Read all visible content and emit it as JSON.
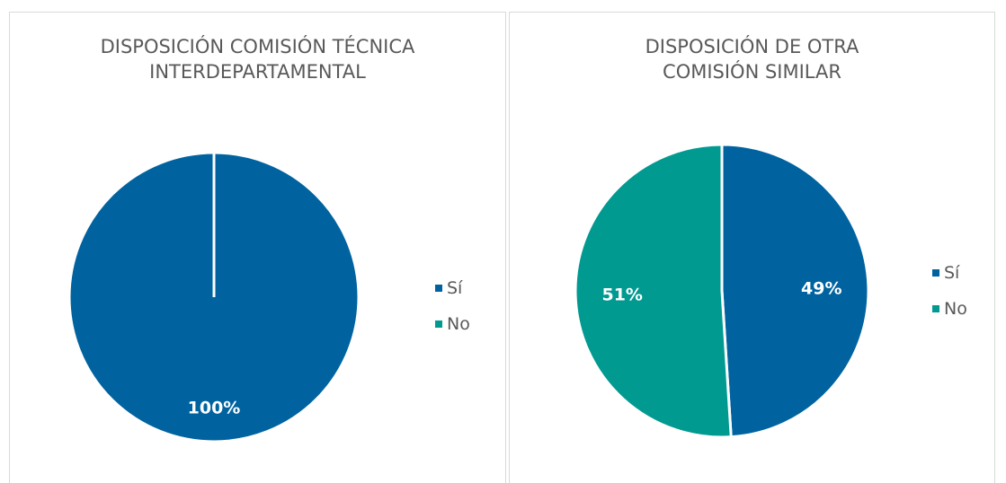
{
  "colors": {
    "si": "#0063A0",
    "no": "#009A91"
  },
  "chart_data": [
    {
      "type": "pie",
      "title": "DISPOSICIÓN COMISIÓN TÉCNICA INTERDEPARTAMENTAL",
      "categories": [
        "Sí",
        "No"
      ],
      "values": [
        100,
        0
      ],
      "data_labels": [
        "100%",
        ""
      ],
      "legend": "right"
    },
    {
      "type": "pie",
      "title": "DISPOSICIÓN DE OTRA COMISIÓN SIMILAR",
      "categories": [
        "Sí",
        "No"
      ],
      "values": [
        49,
        51
      ],
      "data_labels": [
        "49%",
        "51%"
      ],
      "legend": "right"
    }
  ]
}
